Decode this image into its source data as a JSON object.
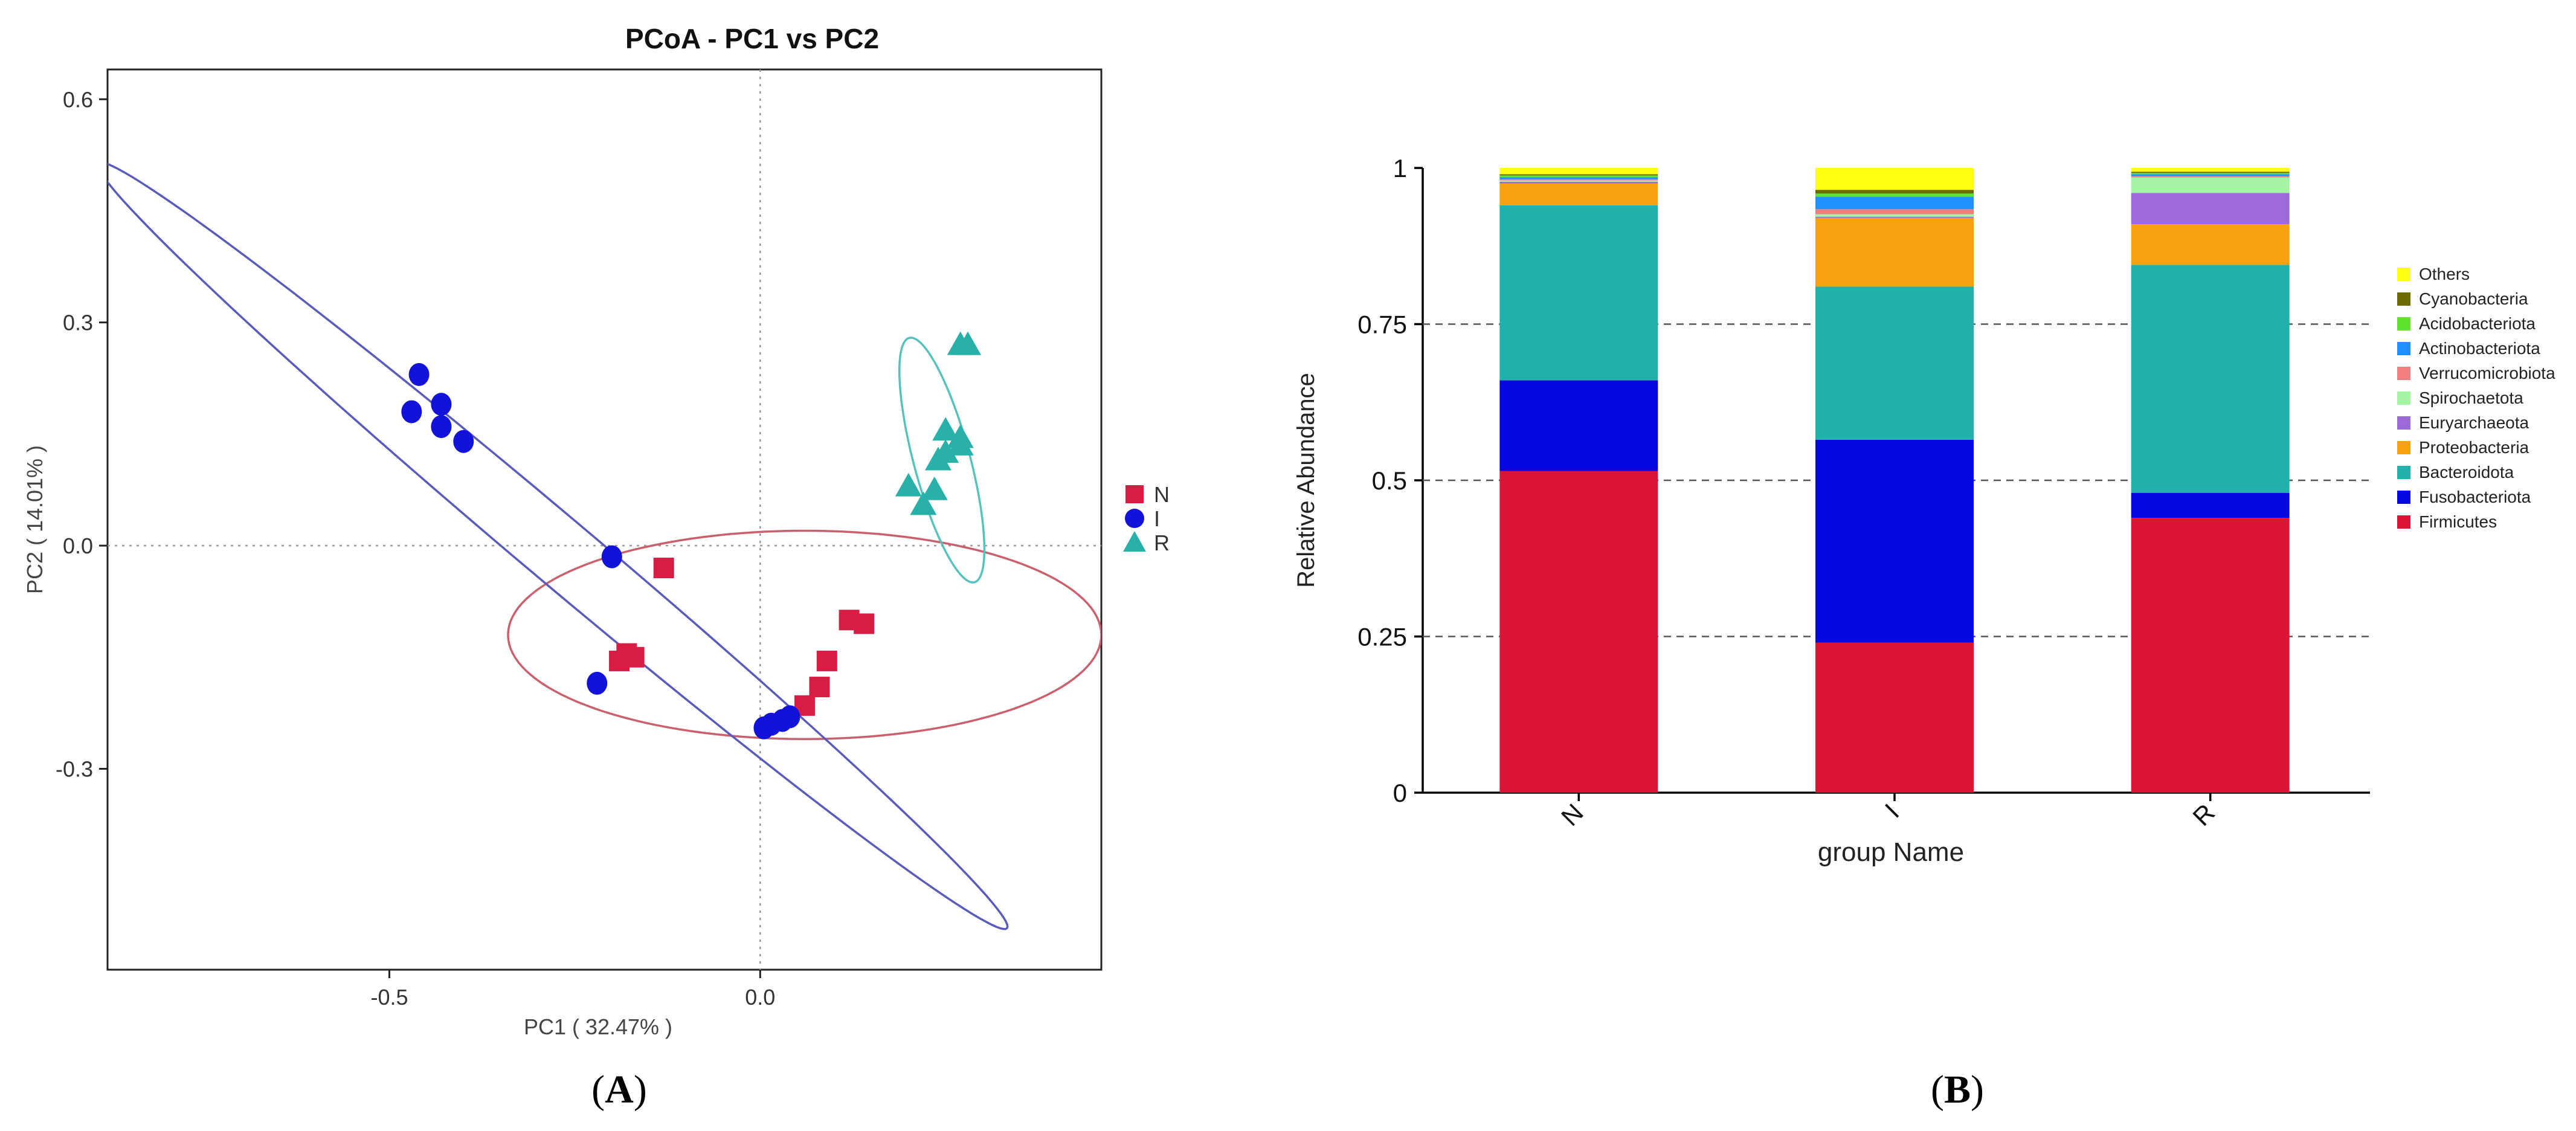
{
  "panel_labels": {
    "a": "A",
    "b": "B"
  },
  "chart_data": [
    {
      "type": "scatter",
      "title": "PCoA - PC1 vs PC2",
      "xlabel": "PC1 ( 32.47% )",
      "ylabel": "PC2 ( 14.01% )",
      "xlim": [
        -0.88,
        0.46
      ],
      "ylim": [
        -0.57,
        0.64
      ],
      "xticks": [
        {
          "v": -0.5,
          "label": "-0.5"
        },
        {
          "v": 0.0,
          "label": "0.0"
        }
      ],
      "yticks": [
        {
          "v": 0.6,
          "label": "0.6"
        },
        {
          "v": 0.3,
          "label": "0.3"
        },
        {
          "v": 0.0,
          "label": "0.0"
        },
        {
          "v": -0.3,
          "label": "-0.3"
        }
      ],
      "reference_lines": {
        "x": 0.0,
        "y": 0.0
      },
      "legend_position": "right",
      "series": [
        {
          "name": "N",
          "marker": "square",
          "color": "#d61e45",
          "points": [
            [
              -0.13,
              -0.03
            ],
            [
              0.12,
              -0.1
            ],
            [
              0.14,
              -0.105
            ],
            [
              0.09,
              -0.155
            ],
            [
              0.08,
              -0.19
            ],
            [
              0.06,
              -0.215
            ],
            [
              -0.19,
              -0.155
            ],
            [
              -0.18,
              -0.145
            ],
            [
              -0.17,
              -0.15
            ]
          ],
          "ellipse": {
            "cx": 0.06,
            "cy": -0.12,
            "rx": 0.4,
            "ry": 0.14,
            "angle": 0,
            "color": "#c8606e"
          }
        },
        {
          "name": "I",
          "marker": "circle",
          "color": "#1212d8",
          "points": [
            [
              -0.46,
              0.23
            ],
            [
              -0.47,
              0.18
            ],
            [
              -0.43,
              0.19
            ],
            [
              -0.43,
              0.16
            ],
            [
              -0.4,
              0.14
            ],
            [
              -0.2,
              -0.015
            ],
            [
              -0.22,
              -0.185
            ],
            [
              0.005,
              -0.245
            ],
            [
              0.015,
              -0.24
            ],
            [
              0.03,
              -0.235
            ],
            [
              0.04,
              -0.23
            ]
          ],
          "ellipse": {
            "cx": -0.28,
            "cy": 0.0,
            "rx": 0.8,
            "ry": 0.045,
            "angle": -40,
            "color": "#5a5ab8"
          }
        },
        {
          "name": "R",
          "marker": "triangle",
          "color": "#29b0a8",
          "points": [
            [
              0.27,
              0.27
            ],
            [
              0.28,
              0.27
            ],
            [
              0.25,
              0.155
            ],
            [
              0.27,
              0.145
            ],
            [
              0.25,
              0.125
            ],
            [
              0.24,
              0.115
            ],
            [
              0.27,
              0.135
            ],
            [
              0.2,
              0.08
            ],
            [
              0.22,
              0.055
            ],
            [
              0.235,
              0.075
            ]
          ],
          "ellipse": {
            "cx": 0.245,
            "cy": 0.115,
            "rx": 0.038,
            "ry": 0.17,
            "angle": 15,
            "color": "#55c2bc"
          }
        }
      ]
    },
    {
      "type": "bar",
      "stacked": true,
      "title": "",
      "xlabel": "group Name",
      "ylabel": "Relative Abundance",
      "ylim": [
        0,
        1
      ],
      "yticks": [
        {
          "v": 0,
          "label": "0"
        },
        {
          "v": 0.25,
          "label": "0.25"
        },
        {
          "v": 0.5,
          "label": "0.5"
        },
        {
          "v": 0.75,
          "label": "0.75"
        },
        {
          "v": 1,
          "label": "1"
        }
      ],
      "gridlines": [
        0.25,
        0.5,
        0.75
      ],
      "categories": [
        "N",
        "I",
        "R"
      ],
      "legend_position": "right",
      "series": [
        {
          "name": "Firmicutes",
          "color": "#dc1437",
          "values": [
            0.515,
            0.24,
            0.44
          ]
        },
        {
          "name": "Fusobacteriota",
          "color": "#0707e0",
          "values": [
            0.145,
            0.325,
            0.04
          ]
        },
        {
          "name": "Bacteroidota",
          "color": "#20b2aa",
          "values": [
            0.28,
            0.245,
            0.365
          ]
        },
        {
          "name": "Proteobacteria",
          "color": "#f7a10e",
          "values": [
            0.035,
            0.11,
            0.065
          ]
        },
        {
          "name": "Euryarchaeota",
          "color": "#9d6bd9",
          "values": [
            0.003,
            0.002,
            0.05
          ]
        },
        {
          "name": "Spirochaetota",
          "color": "#a3f5a3",
          "values": [
            0.002,
            0.004,
            0.025
          ]
        },
        {
          "name": "Verrucomicrobiota",
          "color": "#f08080",
          "values": [
            0.002,
            0.008,
            0.002
          ]
        },
        {
          "name": "Actinobacteriota",
          "color": "#1e90ff",
          "values": [
            0.003,
            0.02,
            0.003
          ]
        },
        {
          "name": "Acidobacteriota",
          "color": "#5fe32e",
          "values": [
            0.003,
            0.005,
            0.002
          ]
        },
        {
          "name": "Cyanobacteria",
          "color": "#6b6b00",
          "values": [
            0.002,
            0.006,
            0.002
          ]
        },
        {
          "name": "Others",
          "color": "#ffff14",
          "values": [
            0.01,
            0.035,
            0.006
          ]
        }
      ]
    }
  ]
}
